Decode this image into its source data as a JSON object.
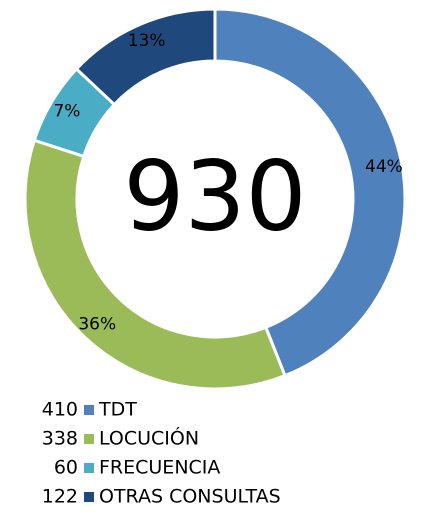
{
  "chart_data": {
    "type": "donut",
    "total": "930",
    "categories": [
      "TDT",
      "LOCUCIÓN",
      "FRECUENCIA",
      "OTRAS CONSULTAS"
    ],
    "values": [
      44,
      36,
      7,
      13
    ],
    "value_labels": [
      "44%",
      "36%",
      "7%",
      "13%"
    ],
    "counts": [
      "410",
      "338",
      "60",
      "122"
    ],
    "colors": [
      "#4f81bd",
      "#9bbb59",
      "#4bacc6",
      "#1f497d"
    ]
  }
}
